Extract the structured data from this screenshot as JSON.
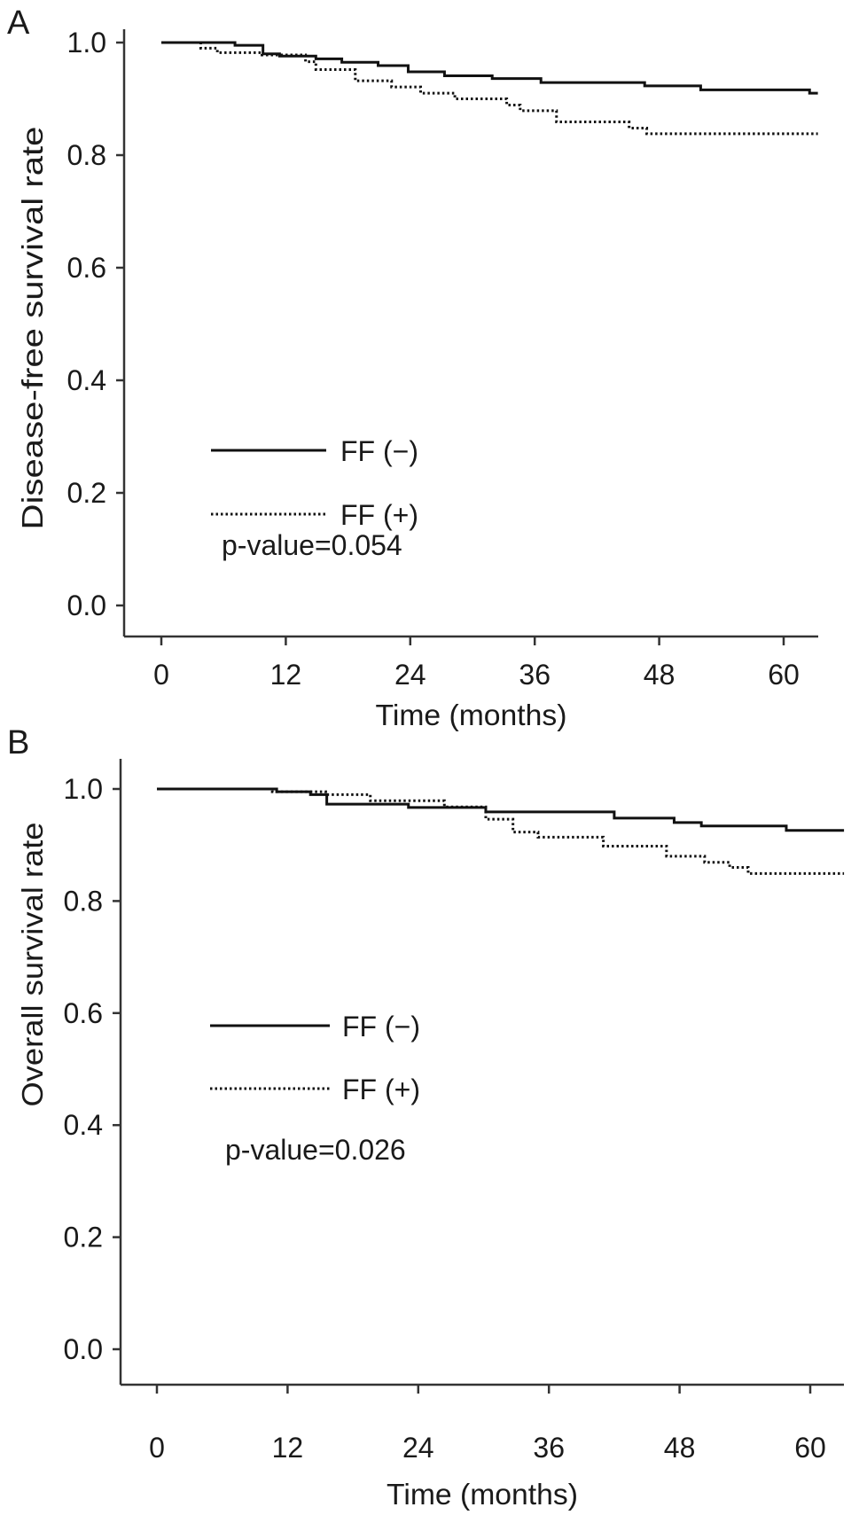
{
  "chart_data": [
    {
      "type": "line",
      "panel_label": "A",
      "xlabel": "Time (months)",
      "ylabel": "Disease-free survival rate",
      "xlim": [
        -3.6,
        63.3
      ],
      "ylim": [
        -0.05,
        1.05
      ],
      "xticks": [
        "0",
        "12",
        "24",
        "36",
        "48",
        "60"
      ],
      "yticks": [
        "0.0",
        "0.2",
        "0.4",
        "0.6",
        "0.8",
        "1.0"
      ],
      "grid": false,
      "legend_position": "bottom-left",
      "annotation": "p-value=0.054",
      "series": [
        {
          "name": "FF (−)",
          "style": "solid",
          "end_time": 63.3,
          "steps": [
            [
              0,
              1.0
            ],
            [
              7.1,
              0.995
            ],
            [
              9.8,
              0.98
            ],
            [
              11.4,
              0.976
            ],
            [
              14.9,
              0.971
            ],
            [
              17.4,
              0.965
            ],
            [
              20.9,
              0.959
            ],
            [
              23.8,
              0.948
            ],
            [
              27.3,
              0.941
            ],
            [
              31.9,
              0.936
            ],
            [
              36.6,
              0.929
            ],
            [
              46.6,
              0.923
            ],
            [
              52.0,
              0.916
            ],
            [
              62.5,
              0.91
            ]
          ]
        },
        {
          "name": "FF (+)",
          "style": "dotted",
          "end_time": 63.3,
          "steps": [
            [
              0,
              1.0
            ],
            [
              3.8,
              0.99
            ],
            [
              5.4,
              0.982
            ],
            [
              9.7,
              0.978
            ],
            [
              13.9,
              0.966
            ],
            [
              14.9,
              0.952
            ],
            [
              18.7,
              0.932
            ],
            [
              22.2,
              0.921
            ],
            [
              25.0,
              0.91
            ],
            [
              28.3,
              0.9
            ],
            [
              33.3,
              0.889
            ],
            [
              34.6,
              0.879
            ],
            [
              38.1,
              0.859
            ],
            [
              45.1,
              0.848
            ],
            [
              46.8,
              0.838
            ]
          ]
        }
      ]
    },
    {
      "type": "line",
      "panel_label": "B",
      "xlabel": "Time (months)",
      "ylabel": "Overall survival rate",
      "xlim": [
        -3.25,
        63.1
      ],
      "ylim": [
        -0.05,
        1.05
      ],
      "xticks": [
        "0",
        "12",
        "24",
        "36",
        "48",
        "60"
      ],
      "yticks": [
        "0.0",
        "0.2",
        "0.4",
        "0.6",
        "0.8",
        "1.0"
      ],
      "grid": false,
      "legend_position": "bottom-left",
      "annotation": "p-value=0.026",
      "series": [
        {
          "name": "FF (−)",
          "style": "solid",
          "end_time": 63.1,
          "steps": [
            [
              0,
              1.0
            ],
            [
              11.0,
              0.995
            ],
            [
              14.1,
              0.99
            ],
            [
              15.6,
              0.973
            ],
            [
              23.1,
              0.967
            ],
            [
              30.2,
              0.959
            ],
            [
              42.0,
              0.948
            ],
            [
              47.5,
              0.94
            ],
            [
              50.0,
              0.934
            ],
            [
              57.8,
              0.926
            ]
          ]
        },
        {
          "name": "FF (+)",
          "style": "dotted",
          "end_time": 63.1,
          "steps": [
            [
              0,
              1.0
            ],
            [
              10.6,
              0.995
            ],
            [
              15.5,
              0.99
            ],
            [
              19.6,
              0.979
            ],
            [
              26.4,
              0.968
            ],
            [
              30.2,
              0.946
            ],
            [
              32.7,
              0.923
            ],
            [
              35.0,
              0.914
            ],
            [
              41.0,
              0.898
            ],
            [
              46.8,
              0.88
            ],
            [
              50.3,
              0.869
            ],
            [
              52.6,
              0.86
            ],
            [
              54.3,
              0.849
            ]
          ]
        }
      ]
    }
  ]
}
